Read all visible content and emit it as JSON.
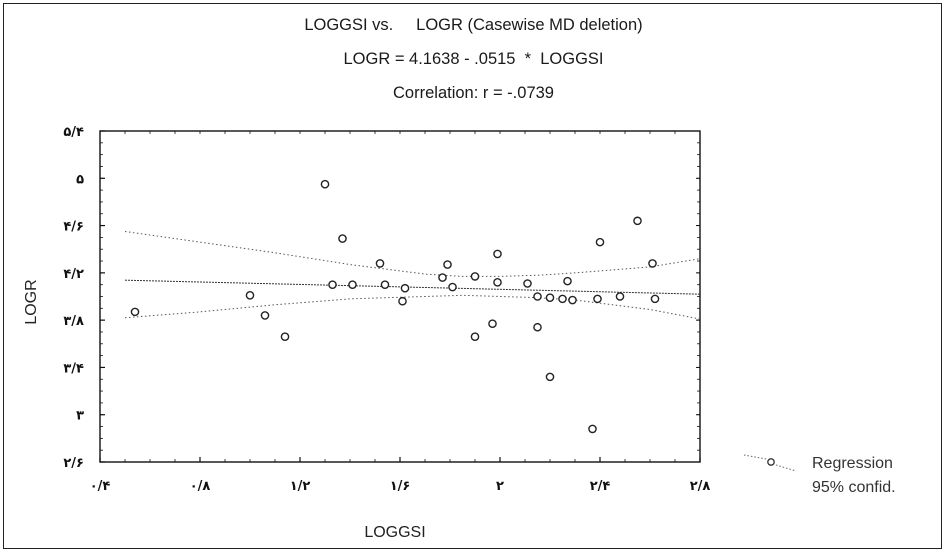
{
  "chart_data": {
    "type": "scatter",
    "title": "LOGGSI vs.     LOGR (Casewise MD deletion)",
    "subtitle": "LOGR = 4.1638 - .0515  *  LOGGSI",
    "annotation": "Correlation: r = -.0739",
    "xlabel": "LOGGSI",
    "ylabel": "LOGR",
    "xlim": [
      0.4,
      2.8
    ],
    "ylim": [
      2.6,
      5.4
    ],
    "x_ticks": [
      0.4,
      0.8,
      1.2,
      1.6,
      2.0,
      2.4,
      2.8
    ],
    "x_tick_labels": [
      "۰/۴",
      "۰/۸",
      "۱/۲",
      "۱/۶",
      "۲",
      "۲/۴",
      "۲/۸"
    ],
    "y_ticks": [
      2.6,
      3.0,
      3.4,
      3.8,
      4.2,
      4.6,
      5.0,
      5.4
    ],
    "y_tick_labels": [
      "۲/۶",
      "۳",
      "۳/۴",
      "۳/۸",
      "۴/۲",
      "۴/۶",
      "۵",
      "۵/۴"
    ],
    "grid": false,
    "legend": [
      "Regression",
      "95% confid."
    ],
    "legend_position": "right",
    "regression": {
      "intercept": 4.1638,
      "slope": -0.0515
    },
    "confidence_band": {
      "x": [
        0.5,
        0.8,
        1.1,
        1.4,
        1.7,
        1.85,
        2.0,
        2.15,
        2.3,
        2.6,
        2.8
      ],
      "upper": [
        4.55,
        4.46,
        4.37,
        4.27,
        4.19,
        4.17,
        4.17,
        4.18,
        4.2,
        4.25,
        4.32
      ],
      "lower": [
        3.82,
        3.87,
        3.93,
        3.98,
        4.0,
        4.01,
        4.0,
        3.99,
        3.97,
        3.89,
        3.81
      ]
    },
    "points": [
      {
        "x": 0.54,
        "y": 3.87
      },
      {
        "x": 1.0,
        "y": 4.01
      },
      {
        "x": 1.06,
        "y": 3.84
      },
      {
        "x": 1.14,
        "y": 3.66
      },
      {
        "x": 1.3,
        "y": 4.95
      },
      {
        "x": 1.33,
        "y": 4.1
      },
      {
        "x": 1.37,
        "y": 4.49
      },
      {
        "x": 1.41,
        "y": 4.1
      },
      {
        "x": 1.52,
        "y": 4.28
      },
      {
        "x": 1.54,
        "y": 4.1
      },
      {
        "x": 1.61,
        "y": 3.96
      },
      {
        "x": 1.62,
        "y": 4.07
      },
      {
        "x": 1.77,
        "y": 4.16
      },
      {
        "x": 1.79,
        "y": 4.27
      },
      {
        "x": 1.81,
        "y": 4.08
      },
      {
        "x": 1.9,
        "y": 4.17
      },
      {
        "x": 1.9,
        "y": 3.66
      },
      {
        "x": 1.97,
        "y": 3.77
      },
      {
        "x": 1.99,
        "y": 4.12
      },
      {
        "x": 1.99,
        "y": 4.36
      },
      {
        "x": 2.11,
        "y": 4.11
      },
      {
        "x": 2.15,
        "y": 3.74
      },
      {
        "x": 2.15,
        "y": 4.0
      },
      {
        "x": 2.2,
        "y": 3.32
      },
      {
        "x": 2.2,
        "y": 3.99
      },
      {
        "x": 2.25,
        "y": 3.98
      },
      {
        "x": 2.27,
        "y": 4.13
      },
      {
        "x": 2.29,
        "y": 3.97
      },
      {
        "x": 2.37,
        "y": 2.88
      },
      {
        "x": 2.39,
        "y": 3.98
      },
      {
        "x": 2.4,
        "y": 4.46
      },
      {
        "x": 2.48,
        "y": 4.0
      },
      {
        "x": 2.55,
        "y": 4.64
      },
      {
        "x": 2.61,
        "y": 4.28
      },
      {
        "x": 2.62,
        "y": 3.98
      }
    ]
  }
}
